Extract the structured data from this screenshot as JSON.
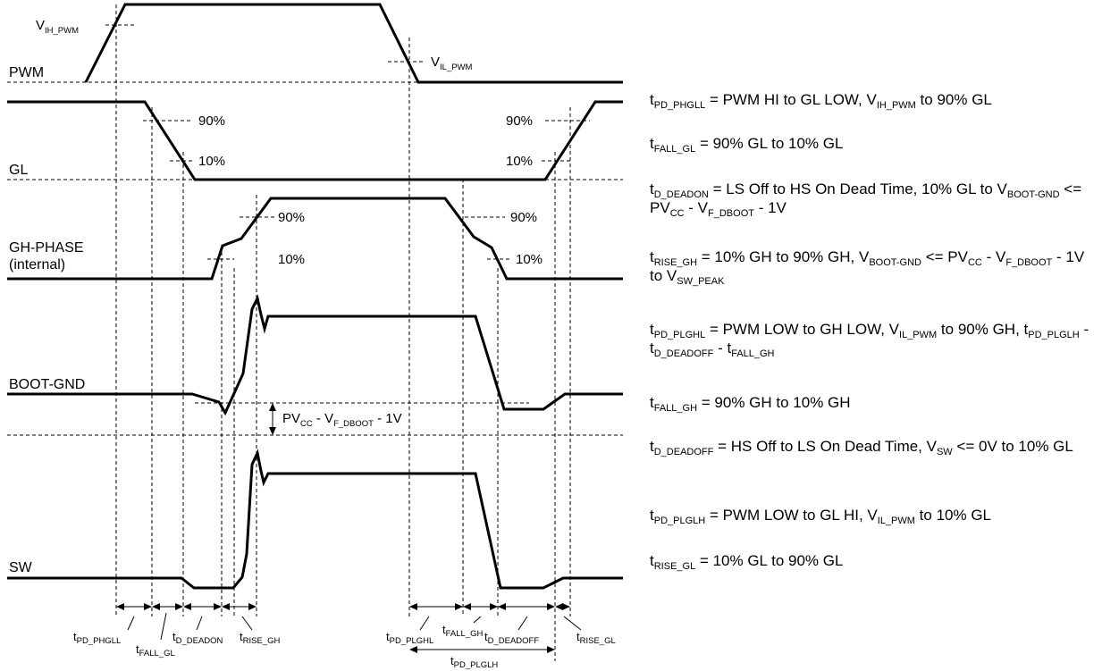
{
  "signals": {
    "pwm": "PWM",
    "gl": "GL",
    "gh_phase": "GH-PHASE",
    "gh_phase_note": "(internal)",
    "boot_gnd": "BOOT-GND",
    "sw": "SW"
  },
  "thresholds": {
    "vih_pwm": {
      "main": "V",
      "sub": "IH_PWM"
    },
    "vil_pwm": {
      "main": "V",
      "sub": "IL_PWM"
    },
    "p90": "90%",
    "p10": "10%",
    "boot_drop": {
      "a": "PV",
      "a_sub": "CC",
      "b": " - V",
      "b_sub": "F_DBOOT",
      "c": " - 1V"
    }
  },
  "timing_labels": {
    "pd_phgll": {
      "main": "t",
      "sub": "PD_PHGLL"
    },
    "fall_gl": {
      "main": "t",
      "sub": "FALL_GL"
    },
    "d_deadon": {
      "main": "t",
      "sub": "D_DEADON"
    },
    "rise_gh": {
      "main": "t",
      "sub": "RISE_GH"
    },
    "pd_plghl": {
      "main": "t",
      "sub": "PD_PLGHL"
    },
    "fall_gh": {
      "main": "t",
      "sub": "FALL_GH"
    },
    "d_deadoff": {
      "main": "t",
      "sub": "D_DEADOFF"
    },
    "rise_gl": {
      "main": "t",
      "sub": "RISE_GL"
    },
    "pd_plglh": {
      "main": "t",
      "sub": "PD_PLGLH"
    }
  },
  "definitions": [
    {
      "key": "tpd-phgll",
      "parts": [
        [
          "t",
          ""
        ],
        [
          "PD_PHGLL",
          "sub"
        ],
        [
          " = PWM HI to GL LOW, V",
          ""
        ],
        [
          "IH_PWM",
          "sub"
        ],
        [
          " to 90% GL",
          ""
        ]
      ]
    },
    {
      "key": "tfall-gl",
      "parts": [
        [
          "t",
          ""
        ],
        [
          "FALL_GL",
          "sub"
        ],
        [
          " = 90% GL to 10% GL",
          ""
        ]
      ]
    },
    {
      "key": "td-deadon",
      "parts": [
        [
          "t",
          ""
        ],
        [
          "D_DEADON",
          "sub"
        ],
        [
          " = LS Off to HS On Dead Time, 10% GL to V",
          ""
        ],
        [
          "BOOT-GND",
          "sub"
        ],
        [
          " <= PV",
          ""
        ],
        [
          "CC",
          "sub"
        ],
        [
          " - V",
          ""
        ],
        [
          "F_DBOOT",
          "sub"
        ],
        [
          " - 1V",
          ""
        ]
      ]
    },
    {
      "key": "trise-gh",
      "parts": [
        [
          "t",
          ""
        ],
        [
          "RISE_GH",
          "sub"
        ],
        [
          " = 10% GH to 90% GH, V",
          ""
        ],
        [
          "BOOT-GND",
          "sub"
        ],
        [
          " <= PV",
          ""
        ],
        [
          "CC",
          "sub"
        ],
        [
          " - V",
          ""
        ],
        [
          "F_DBOOT",
          "sub"
        ],
        [
          " - 1V to V",
          ""
        ],
        [
          "SW_PEAK",
          "sub"
        ]
      ]
    },
    {
      "key": "tpd-plghl",
      "parts": [
        [
          "t",
          ""
        ],
        [
          "PD_PLGHL",
          "sub"
        ],
        [
          " = PWM LOW to GH LOW, V",
          ""
        ],
        [
          "IL_PWM",
          "sub"
        ],
        [
          " to 90% GH, t",
          ""
        ],
        [
          "PD_PLGLH",
          "sub"
        ],
        [
          " - t",
          ""
        ],
        [
          "D_DEADOFF",
          "sub"
        ],
        [
          " - t",
          ""
        ],
        [
          "FALL_GH",
          "sub"
        ]
      ]
    },
    {
      "key": "tfall-gh",
      "parts": [
        [
          "t",
          ""
        ],
        [
          "FALL_GH",
          "sub"
        ],
        [
          " = 90% GH to 10% GH",
          ""
        ]
      ]
    },
    {
      "key": "td-deadoff",
      "parts": [
        [
          "t",
          ""
        ],
        [
          "D_DEADOFF",
          "sub"
        ],
        [
          " = HS Off to LS On Dead Time, V",
          ""
        ],
        [
          "SW",
          "sub"
        ],
        [
          " <= 0V to 10% GL",
          ""
        ]
      ]
    },
    {
      "key": "tpd-plglh",
      "parts": [
        [
          "t",
          ""
        ],
        [
          "PD_PLGLH",
          "sub"
        ],
        [
          " = PWM LOW to GL HI, V",
          ""
        ],
        [
          "IL_PWM",
          "sub"
        ],
        [
          " to 10% GL",
          ""
        ]
      ]
    },
    {
      "key": "trise-gl",
      "parts": [
        [
          "t",
          ""
        ],
        [
          "RISE_GL",
          "sub"
        ],
        [
          " = 10% GL to 90% GL",
          ""
        ]
      ]
    }
  ]
}
